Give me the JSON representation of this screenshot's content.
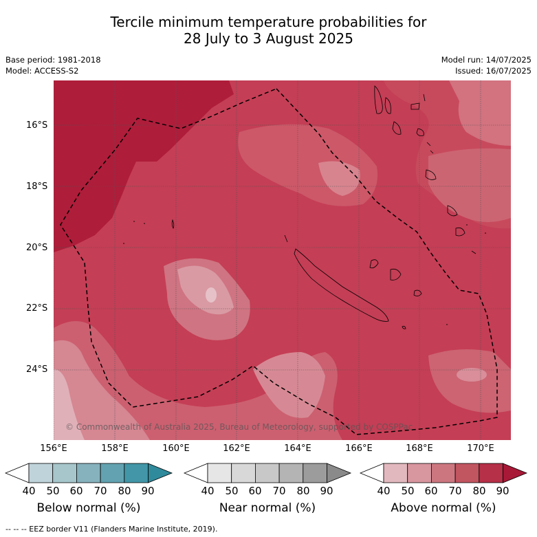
{
  "title_line1": "Tercile minimum temperature probabilities for",
  "title_line2": "28 July to 3 August 2025",
  "base_period": "Base period: 1981-2018",
  "model": "Model: ACCESS-S2",
  "model_run": "Model run: 14/07/2025",
  "issued": "Issued: 16/07/2025",
  "copyright": "© Commonwealth of Australia 2025, Bureau of Meteorology, supported by COSPPac",
  "footer": "--  --  -- EEZ border V11 (Flanders Marine Institute, 2019).",
  "lat_labels": [
    "16°S",
    "18°S",
    "20°S",
    "22°S",
    "24°S"
  ],
  "lon_labels": [
    "156°E",
    "158°E",
    "160°E",
    "162°E",
    "164°E",
    "166°E",
    "168°E",
    "170°E"
  ],
  "colorbars": [
    {
      "title": "Below normal (%)",
      "ticks": [
        "40",
        "50",
        "60",
        "70",
        "80",
        "90"
      ],
      "colors": [
        "#ffffff",
        "#bfd3da",
        "#a6c6cb",
        "#86b2bd",
        "#63a3b1",
        "#4296a7",
        "#2f8a9b"
      ]
    },
    {
      "title": "Near normal (%)",
      "ticks": [
        "40",
        "50",
        "60",
        "70",
        "80",
        "90"
      ],
      "colors": [
        "#ffffff",
        "#e6e6e6",
        "#d8d8d8",
        "#c8c8c8",
        "#b4b4b4",
        "#9c9c9c",
        "#8a8a8a"
      ]
    },
    {
      "title": "Above normal (%)",
      "ticks": [
        "40",
        "50",
        "60",
        "70",
        "80",
        "90"
      ],
      "colors": [
        "#ffffff",
        "#e2b8bf",
        "#d8969f",
        "#cc7780",
        "#c15560",
        "#b63048",
        "#a81837"
      ]
    }
  ],
  "legend_colors": {
    "above_50": "#e2b8bf",
    "above_60": "#d8969f",
    "above_70": "#cc7780",
    "above_80": "#c15560",
    "above_90": "#b63048",
    "above_max": "#ae1d3a"
  }
}
